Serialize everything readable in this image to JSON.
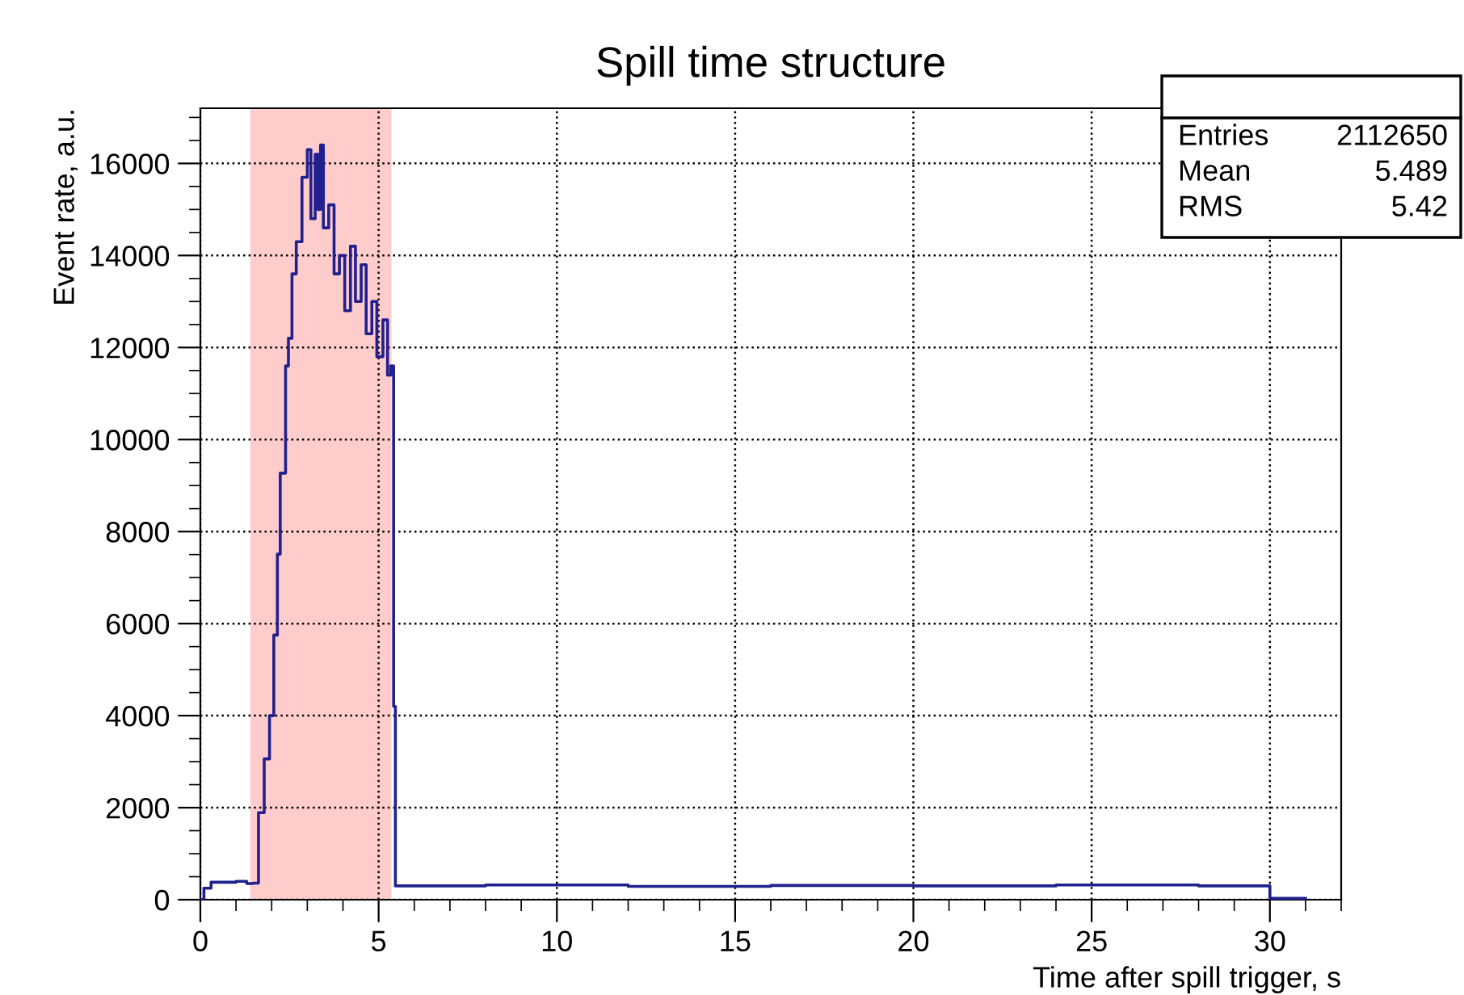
{
  "chart_data": {
    "type": "step",
    "title": "Spill time structure",
    "xlabel": "Time after spill trigger, s",
    "ylabel": "Event rate, a.u.",
    "x": [
      0,
      0.1,
      0.3,
      1.0,
      1.3,
      1.48,
      1.63,
      1.79,
      1.94,
      2.06,
      2.16,
      2.24,
      2.39,
      2.47,
      2.57,
      2.69,
      2.85,
      3.0,
      3.1,
      3.22,
      3.3,
      3.37,
      3.45,
      3.6,
      3.75,
      3.9,
      4.05,
      4.21,
      4.35,
      4.51,
      4.65,
      4.81,
      4.95,
      5.12,
      5.25,
      5.34,
      5.42,
      5.47,
      8,
      12,
      16,
      20,
      24,
      28,
      30,
      31
    ],
    "series": [
      {
        "color": "#20208f",
        "values": [
          0,
          250,
          380,
          400,
          350,
          360,
          1890,
          3060,
          4000,
          5750,
          7510,
          9270,
          11600,
          12200,
          13600,
          14300,
          15700,
          16300,
          14800,
          16200,
          15000,
          16400,
          14600,
          15100,
          13600,
          14000,
          12800,
          14200,
          13000,
          13800,
          12300,
          13000,
          11800,
          12600,
          11400,
          11600,
          4200,
          300,
          320,
          290,
          310,
          300,
          320,
          300,
          30,
          30
        ]
      }
    ],
    "xlim": [
      0,
      32
    ],
    "ylim": [
      0,
      17200
    ],
    "xticks": [
      0,
      5,
      10,
      15,
      20,
      25,
      30
    ],
    "yticks": [
      0,
      2000,
      4000,
      6000,
      8000,
      10000,
      12000,
      14000,
      16000
    ],
    "grid": true,
    "bands": [
      {
        "axis": "x",
        "from": 1.4,
        "to": 5.36,
        "color": "#ffcccc"
      }
    ],
    "annotations": [
      "Entries",
      "2112650",
      "Mean",
      "5.489",
      "RMS",
      "5.42"
    ]
  }
}
